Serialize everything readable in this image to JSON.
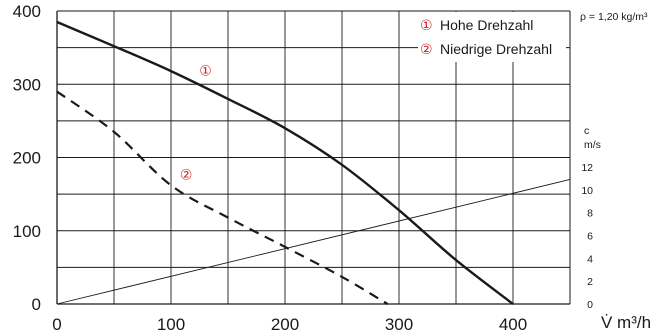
{
  "chart_data": {
    "type": "line",
    "density_note": "ρ = 1,20 kg/m³",
    "xlabel": "V̇ m³/h",
    "x_ticks": [
      "0",
      "100",
      "200",
      "300",
      "400"
    ],
    "y_ticks": [
      "0",
      "100",
      "200",
      "300",
      "400"
    ],
    "xlim": [
      0,
      450
    ],
    "ylim": [
      0,
      400
    ],
    "right_axis": {
      "label_top": "c",
      "label_bottom": "m/s",
      "ticks": [
        "0",
        "2",
        "4",
        "6",
        "8",
        "10",
        "12"
      ],
      "range": [
        0,
        12
      ]
    },
    "grid": true,
    "legend_position": "top-right",
    "legend": [
      {
        "marker": "①",
        "label": "Hohe Drehzahl"
      },
      {
        "marker": "②",
        "label": "Niedrige Drehzahl"
      }
    ],
    "annotations": [
      {
        "text": "①",
        "x": 130,
        "y": 320
      },
      {
        "text": "②",
        "x": 113,
        "y": 178
      }
    ],
    "series": [
      {
        "marker_label": "①",
        "style": "solid",
        "x": [
          0,
          50,
          100,
          150,
          200,
          250,
          300,
          350,
          400
        ],
        "y": [
          385,
          352,
          318,
          280,
          240,
          190,
          128,
          60,
          0
        ]
      },
      {
        "marker_label": "②",
        "style": "dashed",
        "x": [
          0,
          50,
          100,
          150,
          200,
          250,
          290
        ],
        "y": [
          290,
          235,
          162,
          118,
          78,
          37,
          0
        ]
      },
      {
        "style": "thin",
        "x": [
          0,
          450
        ],
        "y": [
          0,
          170
        ]
      }
    ],
    "colors": {
      "curve": "#1a1a1a",
      "grid": "#1a1a1a",
      "annotation": "#d0202a"
    }
  }
}
